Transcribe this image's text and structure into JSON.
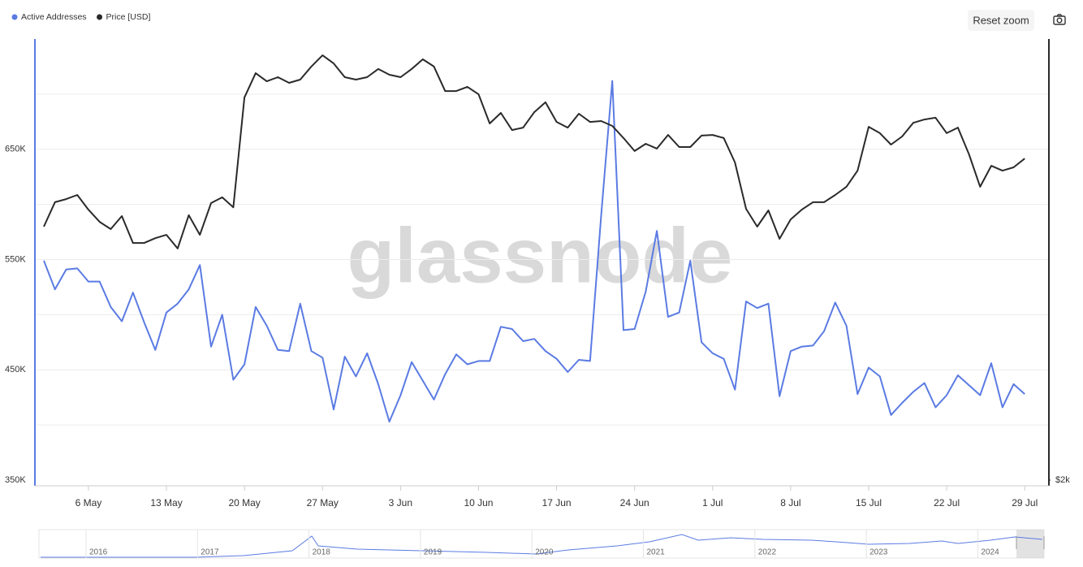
{
  "chart_data": {
    "type": "line",
    "categories": [
      null,
      null,
      null,
      null,
      "6 May",
      null,
      null,
      null,
      null,
      null,
      null,
      "13 May",
      null,
      null,
      null,
      null,
      null,
      null,
      "20 May",
      null,
      null,
      null,
      null,
      null,
      null,
      "27 May",
      null,
      null,
      null,
      null,
      null,
      null,
      "3 Jun",
      null,
      null,
      null,
      null,
      null,
      null,
      "10 Jun",
      null,
      null,
      null,
      null,
      null,
      null,
      "17 Jun",
      null,
      null,
      null,
      null,
      null,
      null,
      "24 Jun",
      null,
      null,
      null,
      null,
      null,
      null,
      "1 Jul",
      null,
      null,
      null,
      null,
      null,
      null,
      "8 Jul",
      null,
      null,
      null,
      null,
      null,
      null,
      "15 Jul",
      null,
      null,
      null,
      null,
      null,
      null,
      "22 Jul",
      null,
      null,
      null,
      null,
      null,
      null,
      "29 Jul"
    ],
    "series": [
      {
        "name": "Active Addresses",
        "color": "#5b7be3",
        "values": [
          549000,
          523000,
          541000,
          542000,
          530000,
          530000,
          507000,
          494000,
          520000,
          493000,
          468000,
          502000,
          510000,
          523000,
          545000,
          471000,
          500000,
          441000,
          455000,
          507000,
          490000,
          468000,
          467000,
          510000,
          467000,
          461000,
          414000,
          462000,
          444000,
          465000,
          437000,
          403000,
          427000,
          457000,
          440000,
          423000,
          446000,
          464000,
          455000,
          458000,
          458000,
          489000,
          487000,
          476000,
          478000,
          467000,
          460000,
          448000,
          459000,
          458000,
          590000,
          712000,
          486000,
          487000,
          521000,
          576000,
          498000,
          502000,
          549000,
          475000,
          465000,
          460000,
          432000,
          512000,
          506000,
          510000,
          426000,
          467000,
          471000,
          472000,
          485000,
          511000,
          490000,
          428000,
          452000,
          444000,
          409000,
          420000,
          430000,
          438000,
          416000,
          427000,
          445000,
          436000,
          427000,
          456000,
          416000,
          437000,
          428000
        ]
      },
      {
        "name": "Price [USD]",
        "color": "#2a2a2a",
        "axis": "y2",
        "values": [
          3149,
          3260,
          3274,
          3293,
          3226,
          3171,
          3138,
          3197,
          3075,
          3075,
          3097,
          3112,
          3050,
          3201,
          3112,
          3256,
          3282,
          3237,
          3735,
          3845,
          3808,
          3827,
          3801,
          3816,
          3875,
          3926,
          3889,
          3827,
          3816,
          3827,
          3864,
          3838,
          3827,
          3864,
          3908,
          3875,
          3764,
          3764,
          3783,
          3749,
          3617,
          3665,
          3587,
          3598,
          3668,
          3713,
          3624,
          3598,
          3661,
          3624,
          3628,
          3606,
          3551,
          3492,
          3525,
          3503,
          3565,
          3510,
          3510,
          3562,
          3565,
          3551,
          3440,
          3230,
          3149,
          3223,
          3094,
          3182,
          3226,
          3260,
          3260,
          3293,
          3330,
          3403,
          3602,
          3573,
          3521,
          3558,
          3620,
          3635,
          3643,
          3573,
          3598,
          3477,
          3330,
          3425,
          3403,
          3418,
          3458
        ]
      }
    ],
    "ylim": [
      350000,
      750000
    ],
    "yticks": [
      {
        "value": 350000,
        "label": "350K"
      },
      {
        "value": 450000,
        "label": "450K"
      },
      {
        "value": 550000,
        "label": "550K"
      },
      {
        "value": 650000,
        "label": "650K"
      }
    ],
    "ygrid": [
      400000,
      450000,
      500000,
      550000,
      600000,
      650000,
      700000
    ],
    "y2lim": [
      2000,
      4000
    ],
    "y2ticks": [
      {
        "value": 2000,
        "label": "$2k"
      }
    ],
    "legend": "top-left"
  },
  "ui": {
    "reset_zoom": "Reset zoom",
    "watermark": "glassnode",
    "navigator_labels": [
      "2016",
      "2017",
      "2018",
      "2019",
      "2020",
      "2021",
      "2022",
      "2023",
      "2024"
    ]
  }
}
